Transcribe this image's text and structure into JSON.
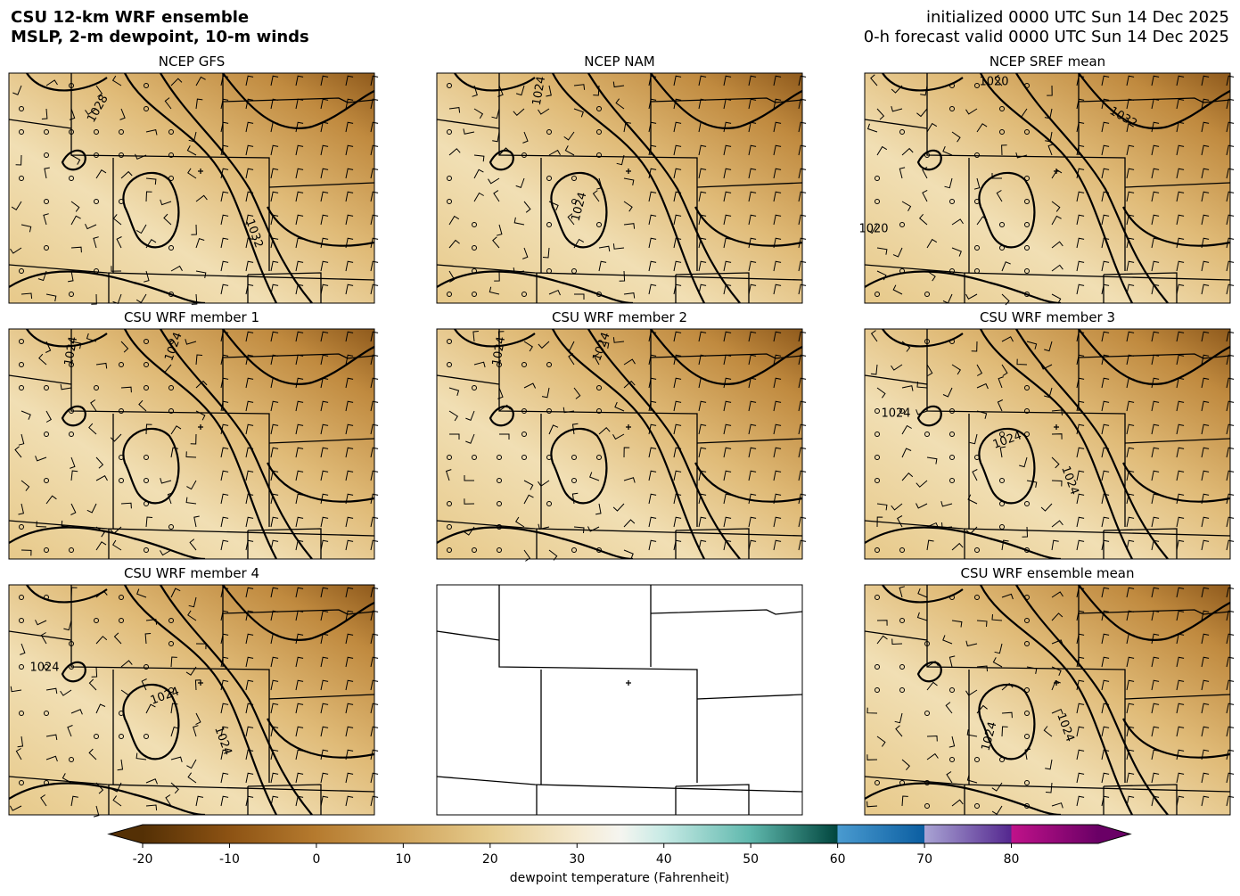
{
  "header": {
    "title_lines": [
      "CSU 12-km WRF ensemble",
      "MSLP, 2-m dewpoint, 10-m winds"
    ],
    "init": "initialized 0000 UTC Sun 14 Dec 2025",
    "valid": "0-h forecast valid 0000 UTC Sun 14 Dec 2025"
  },
  "panels": [
    {
      "title": "NCEP GFS",
      "contour_labels": [
        "1028",
        "1032"
      ]
    },
    {
      "title": "NCEP NAM",
      "contour_labels": [
        "1024",
        "1024"
      ]
    },
    {
      "title": "NCEP SREF mean",
      "contour_labels": [
        "1020",
        "1032",
        "1020"
      ]
    },
    {
      "title": "CSU WRF member 1",
      "contour_labels": [
        "1024",
        "1024"
      ]
    },
    {
      "title": "CSU WRF member 2",
      "contour_labels": [
        "1024",
        "1024"
      ]
    },
    {
      "title": "CSU WRF member 3",
      "contour_labels": [
        "1024",
        "1024",
        "1024"
      ]
    },
    {
      "title": "CSU WRF member 4",
      "contour_labels": [
        "1024",
        "1024",
        "1024"
      ]
    },
    {
      "title": "CSU WRF ensemble mean",
      "contour_labels": [
        "1024",
        "1024"
      ]
    }
  ],
  "colorbar": {
    "label": "dewpoint temperature (Fahrenheit)",
    "lim": [
      -20,
      90
    ],
    "ticks": [
      -20,
      -10,
      0,
      10,
      20,
      30,
      40,
      50,
      60,
      70,
      80
    ]
  }
}
